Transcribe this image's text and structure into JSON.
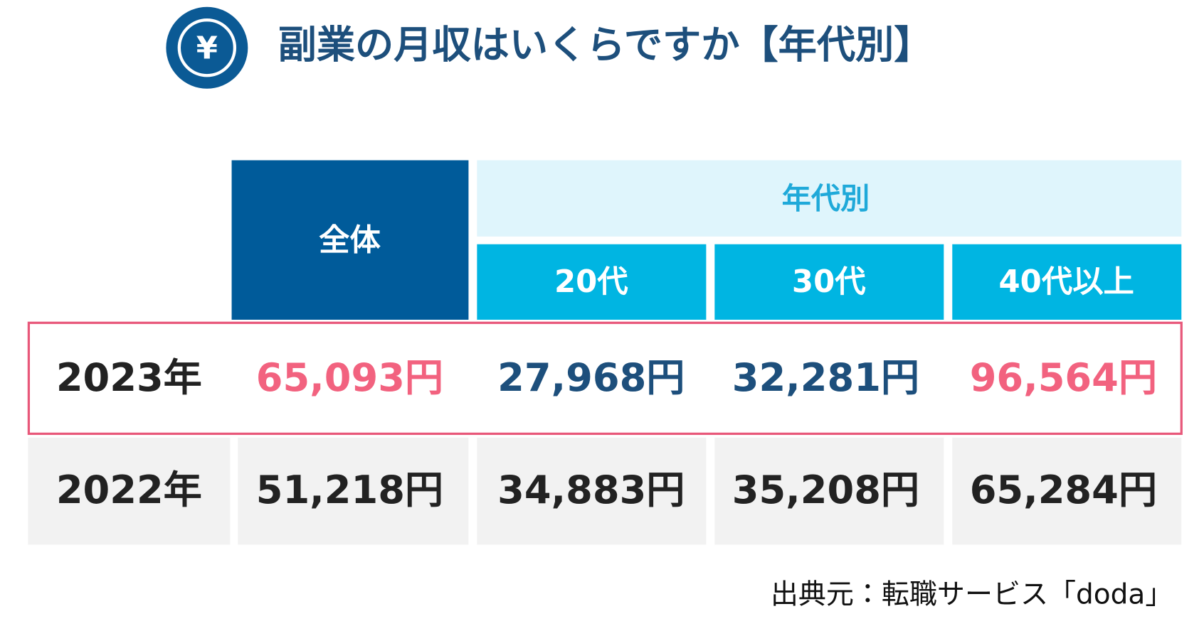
{
  "header": {
    "icon": "¥",
    "title": "副業の月収はいくらですか【年代別】"
  },
  "table": {
    "overall": "全体",
    "group": "年代別",
    "ages": [
      "20代",
      "30代",
      "40代以上"
    ],
    "rows": [
      [
        "2023年",
        "65,093円",
        "27,968円",
        "32,281円",
        "96,564円"
      ],
      [
        "2022年",
        "51,218円",
        "34,883円",
        "35,208円",
        "65,284円"
      ]
    ]
  },
  "source": "出典元：転職サービス「doda」"
}
